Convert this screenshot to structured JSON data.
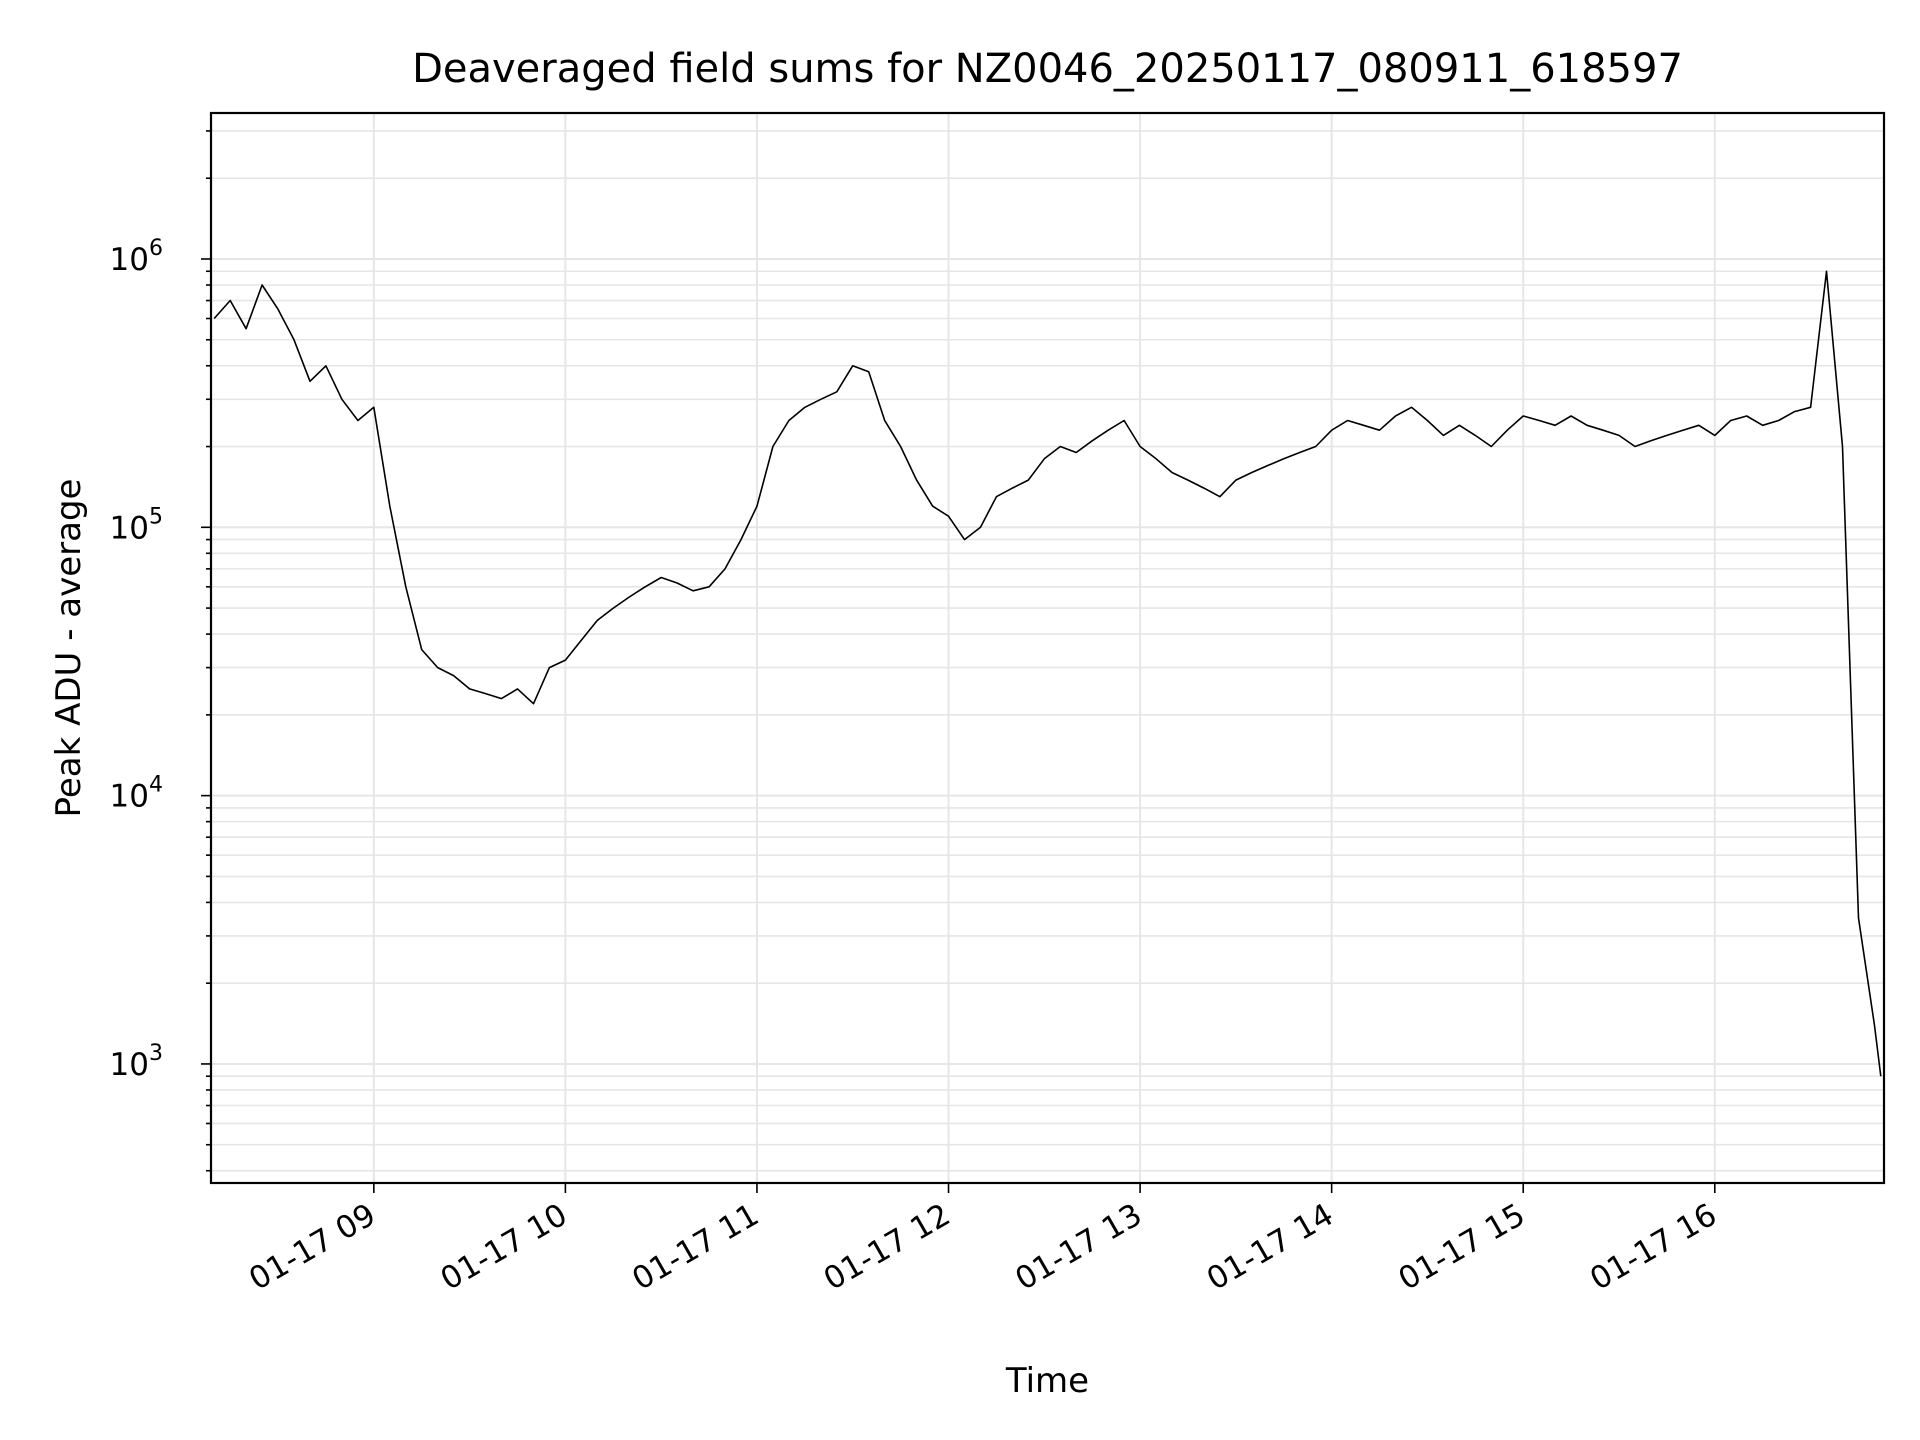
{
  "chart_data": {
    "type": "line",
    "title": "Deaveraged field sums for NZ0046_20250117_080911_618597",
    "xlabel": "Time",
    "ylabel": "Peak ADU - average",
    "yscale": "log",
    "ylim": [
      360,
      3500000
    ],
    "xlim": [
      "2025-01-17 08:09",
      "2025-01-17 16:53"
    ],
    "grid": true,
    "grid_color": "#e6e6e6",
    "line_color": "#000000",
    "x_ticks": [
      {
        "value": "2025-01-17 09:00",
        "label": "01-17 09"
      },
      {
        "value": "2025-01-17 10:00",
        "label": "01-17 10"
      },
      {
        "value": "2025-01-17 11:00",
        "label": "01-17 11"
      },
      {
        "value": "2025-01-17 12:00",
        "label": "01-17 12"
      },
      {
        "value": "2025-01-17 13:00",
        "label": "01-17 13"
      },
      {
        "value": "2025-01-17 14:00",
        "label": "01-17 14"
      },
      {
        "value": "2025-01-17 15:00",
        "label": "01-17 15"
      },
      {
        "value": "2025-01-17 16:00",
        "label": "01-17 16"
      }
    ],
    "y_ticks": [
      {
        "value": 1000,
        "base": "10",
        "exp": "3"
      },
      {
        "value": 10000,
        "base": "10",
        "exp": "4"
      },
      {
        "value": 100000,
        "base": "10",
        "exp": "5"
      },
      {
        "value": 1000000,
        "base": "10",
        "exp": "6"
      }
    ],
    "series": [
      {
        "x": [
          "2025-01-17 08:10",
          "2025-01-17 08:15",
          "2025-01-17 08:20",
          "2025-01-17 08:25",
          "2025-01-17 08:30",
          "2025-01-17 08:35",
          "2025-01-17 08:40",
          "2025-01-17 08:45",
          "2025-01-17 08:50",
          "2025-01-17 08:55",
          "2025-01-17 09:00",
          "2025-01-17 09:05",
          "2025-01-17 09:10",
          "2025-01-17 09:15",
          "2025-01-17 09:20",
          "2025-01-17 09:25",
          "2025-01-17 09:30",
          "2025-01-17 09:35",
          "2025-01-17 09:40",
          "2025-01-17 09:45",
          "2025-01-17 09:50",
          "2025-01-17 09:55",
          "2025-01-17 10:00",
          "2025-01-17 10:05",
          "2025-01-17 10:10",
          "2025-01-17 10:15",
          "2025-01-17 10:20",
          "2025-01-17 10:25",
          "2025-01-17 10:30",
          "2025-01-17 10:35",
          "2025-01-17 10:40",
          "2025-01-17 10:45",
          "2025-01-17 10:50",
          "2025-01-17 10:55",
          "2025-01-17 11:00",
          "2025-01-17 11:05",
          "2025-01-17 11:10",
          "2025-01-17 11:15",
          "2025-01-17 11:20",
          "2025-01-17 11:25",
          "2025-01-17 11:30",
          "2025-01-17 11:35",
          "2025-01-17 11:40",
          "2025-01-17 11:45",
          "2025-01-17 11:50",
          "2025-01-17 11:55",
          "2025-01-17 12:00",
          "2025-01-17 12:05",
          "2025-01-17 12:10",
          "2025-01-17 12:15",
          "2025-01-17 12:20",
          "2025-01-17 12:25",
          "2025-01-17 12:30",
          "2025-01-17 12:35",
          "2025-01-17 12:40",
          "2025-01-17 12:45",
          "2025-01-17 12:50",
          "2025-01-17 12:55",
          "2025-01-17 13:00",
          "2025-01-17 13:05",
          "2025-01-17 13:10",
          "2025-01-17 13:15",
          "2025-01-17 13:20",
          "2025-01-17 13:25",
          "2025-01-17 13:30",
          "2025-01-17 13:35",
          "2025-01-17 13:40",
          "2025-01-17 13:45",
          "2025-01-17 13:50",
          "2025-01-17 13:55",
          "2025-01-17 14:00",
          "2025-01-17 14:05",
          "2025-01-17 14:10",
          "2025-01-17 14:15",
          "2025-01-17 14:20",
          "2025-01-17 14:25",
          "2025-01-17 14:30",
          "2025-01-17 14:35",
          "2025-01-17 14:40",
          "2025-01-17 14:45",
          "2025-01-17 14:50",
          "2025-01-17 14:55",
          "2025-01-17 15:00",
          "2025-01-17 15:05",
          "2025-01-17 15:10",
          "2025-01-17 15:15",
          "2025-01-17 15:20",
          "2025-01-17 15:25",
          "2025-01-17 15:30",
          "2025-01-17 15:35",
          "2025-01-17 15:40",
          "2025-01-17 15:45",
          "2025-01-17 15:50",
          "2025-01-17 15:55",
          "2025-01-17 16:00",
          "2025-01-17 16:05",
          "2025-01-17 16:10",
          "2025-01-17 16:15",
          "2025-01-17 16:20",
          "2025-01-17 16:25",
          "2025-01-17 16:30",
          "2025-01-17 16:35",
          "2025-01-17 16:40",
          "2025-01-17 16:45",
          "2025-01-17 16:50",
          "2025-01-17 16:52"
        ],
        "y": [
          600000,
          700000,
          550000,
          800000,
          650000,
          500000,
          350000,
          400000,
          300000,
          250000,
          280000,
          120000,
          60000,
          35000,
          30000,
          28000,
          25000,
          24000,
          23000,
          25000,
          22000,
          30000,
          32000,
          38000,
          45000,
          50000,
          55000,
          60000,
          65000,
          62000,
          58000,
          60000,
          70000,
          90000,
          120000,
          200000,
          250000,
          280000,
          300000,
          320000,
          400000,
          380000,
          250000,
          200000,
          150000,
          120000,
          110000,
          90000,
          100000,
          130000,
          140000,
          150000,
          180000,
          200000,
          190000,
          210000,
          230000,
          250000,
          200000,
          180000,
          160000,
          150000,
          140000,
          130000,
          150000,
          160000,
          170000,
          180000,
          190000,
          200000,
          230000,
          250000,
          240000,
          230000,
          260000,
          280000,
          250000,
          220000,
          240000,
          220000,
          200000,
          230000,
          260000,
          250000,
          240000,
          260000,
          240000,
          230000,
          220000,
          200000,
          210000,
          220000,
          230000,
          240000,
          220000,
          250000,
          260000,
          240000,
          250000,
          270000,
          280000,
          900000,
          200000,
          3500,
          1400,
          900
        ]
      }
    ]
  }
}
